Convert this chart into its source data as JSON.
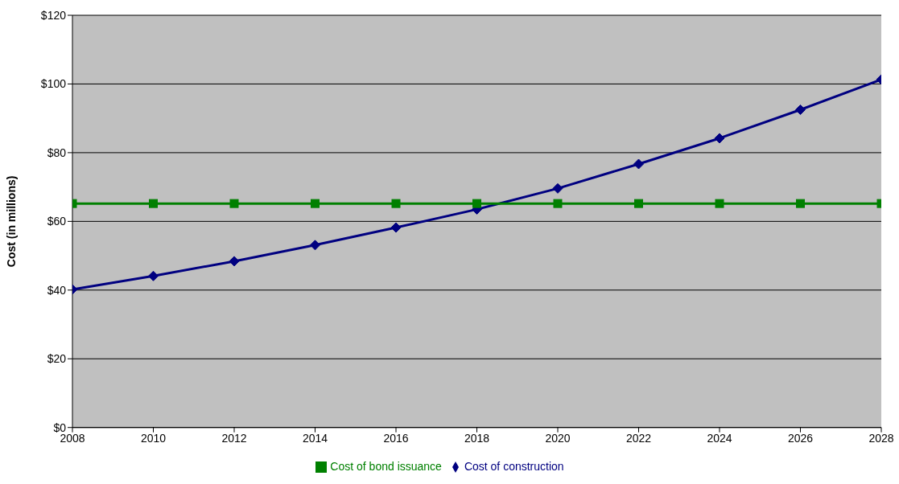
{
  "chart_data": {
    "type": "line",
    "ylabel": "Cost (in millions)",
    "x": [
      2008,
      2010,
      2012,
      2014,
      2016,
      2018,
      2020,
      2022,
      2024,
      2026,
      2028
    ],
    "series": [
      {
        "name": "Cost of construction",
        "color": "#000080",
        "marker": "diamond",
        "values": [
          40.2,
          44.1,
          48.4,
          53.1,
          58.2,
          63.5,
          69.6,
          76.7,
          84.2,
          92.5,
          101.3
        ]
      },
      {
        "name": "Cost of bond issuance",
        "color": "#008000",
        "marker": "square",
        "values": [
          65.2,
          65.2,
          65.2,
          65.2,
          65.2,
          65.2,
          65.2,
          65.2,
          65.2,
          65.2,
          65.2
        ]
      }
    ],
    "xlim": [
      2008,
      2028
    ],
    "xticks": [
      2008,
      2010,
      2012,
      2014,
      2016,
      2018,
      2020,
      2022,
      2024,
      2026,
      2028
    ],
    "ylim": [
      0,
      120
    ],
    "yticks": [
      {
        "value": 0,
        "label": "$0"
      },
      {
        "value": 20,
        "label": "$20"
      },
      {
        "value": 40,
        "label": "$40"
      },
      {
        "value": 60,
        "label": "$60"
      },
      {
        "value": 80,
        "label": "$80"
      },
      {
        "value": 100,
        "label": "$100"
      },
      {
        "value": 120,
        "label": "$120"
      }
    ],
    "grid": "y",
    "legend": "bottom",
    "line_style": "solid"
  }
}
